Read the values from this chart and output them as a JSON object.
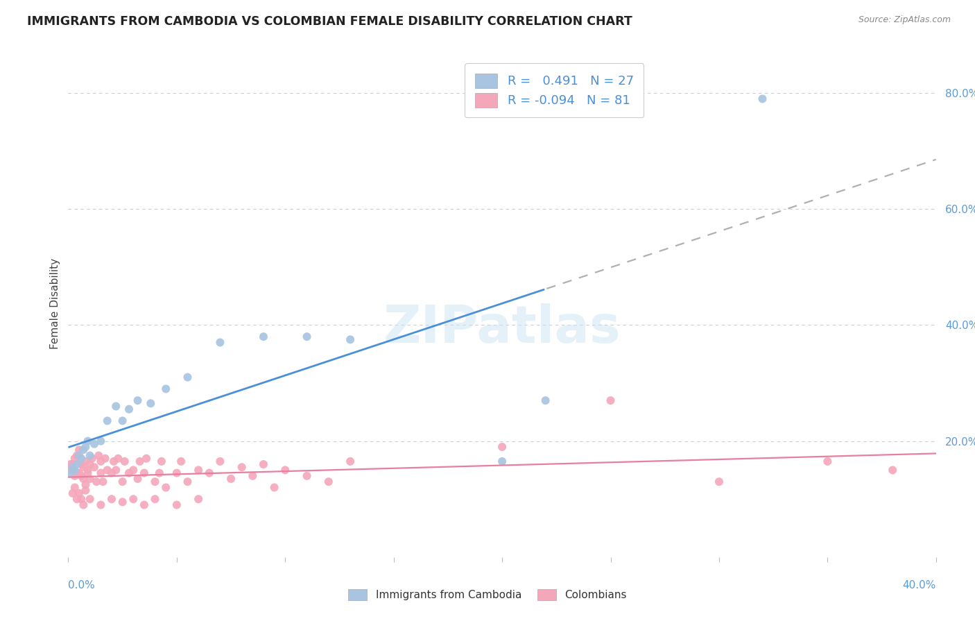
{
  "title": "IMMIGRANTS FROM CAMBODIA VS COLOMBIAN FEMALE DISABILITY CORRELATION CHART",
  "source": "Source: ZipAtlas.com",
  "ylabel": "Female Disability",
  "legend_label1": "Immigrants from Cambodia",
  "legend_label2": "Colombians",
  "r1": 0.491,
  "n1": 27,
  "r2": -0.094,
  "n2": 81,
  "watermark": "ZIPatlas",
  "blue_color": "#a8c4e0",
  "pink_color": "#f4a7b9",
  "blue_line_color": "#4a90d9",
  "pink_line_color": "#e87fa0",
  "gray_dash_color": "#b0b0b0",
  "cambodia_x": [
    0.001,
    0.002,
    0.003,
    0.004,
    0.005,
    0.006,
    0.007,
    0.008,
    0.009,
    0.01,
    0.012,
    0.015,
    0.018,
    0.022,
    0.025,
    0.028,
    0.032,
    0.038,
    0.045,
    0.055,
    0.07,
    0.09,
    0.11,
    0.13,
    0.2,
    0.22,
    0.32
  ],
  "cambodia_y": [
    0.145,
    0.155,
    0.15,
    0.16,
    0.175,
    0.17,
    0.185,
    0.19,
    0.2,
    0.175,
    0.195,
    0.2,
    0.235,
    0.26,
    0.235,
    0.255,
    0.27,
    0.265,
    0.29,
    0.31,
    0.37,
    0.38,
    0.38,
    0.375,
    0.165,
    0.27,
    0.79
  ],
  "colombian_x": [
    0.001,
    0.001,
    0.002,
    0.002,
    0.003,
    0.003,
    0.004,
    0.004,
    0.005,
    0.005,
    0.006,
    0.006,
    0.007,
    0.007,
    0.008,
    0.008,
    0.009,
    0.009,
    0.01,
    0.01,
    0.011,
    0.012,
    0.013,
    0.014,
    0.015,
    0.015,
    0.016,
    0.017,
    0.018,
    0.02,
    0.021,
    0.022,
    0.023,
    0.025,
    0.026,
    0.028,
    0.03,
    0.032,
    0.033,
    0.035,
    0.036,
    0.04,
    0.042,
    0.043,
    0.045,
    0.05,
    0.052,
    0.055,
    0.06,
    0.065,
    0.07,
    0.075,
    0.08,
    0.085,
    0.09,
    0.095,
    0.1,
    0.11,
    0.12,
    0.13,
    0.002,
    0.003,
    0.004,
    0.005,
    0.006,
    0.007,
    0.008,
    0.01,
    0.015,
    0.02,
    0.025,
    0.03,
    0.035,
    0.04,
    0.05,
    0.06,
    0.2,
    0.25,
    0.3,
    0.35,
    0.38
  ],
  "colombian_y": [
    0.15,
    0.16,
    0.15,
    0.16,
    0.14,
    0.17,
    0.145,
    0.175,
    0.145,
    0.185,
    0.14,
    0.16,
    0.135,
    0.155,
    0.125,
    0.165,
    0.145,
    0.15,
    0.135,
    0.16,
    0.17,
    0.155,
    0.13,
    0.175,
    0.145,
    0.165,
    0.13,
    0.17,
    0.15,
    0.145,
    0.165,
    0.15,
    0.17,
    0.13,
    0.165,
    0.145,
    0.15,
    0.135,
    0.165,
    0.145,
    0.17,
    0.13,
    0.145,
    0.165,
    0.12,
    0.145,
    0.165,
    0.13,
    0.15,
    0.145,
    0.165,
    0.135,
    0.155,
    0.14,
    0.16,
    0.12,
    0.15,
    0.14,
    0.13,
    0.165,
    0.11,
    0.12,
    0.1,
    0.11,
    0.1,
    0.09,
    0.115,
    0.1,
    0.09,
    0.1,
    0.095,
    0.1,
    0.09,
    0.1,
    0.09,
    0.1,
    0.19,
    0.27,
    0.13,
    0.165,
    0.15
  ],
  "xlim": [
    0.0,
    0.4
  ],
  "ylim": [
    0.0,
    0.875
  ],
  "yticks": [
    0.0,
    0.2,
    0.4,
    0.6,
    0.8
  ],
  "ytick_labels": [
    "",
    "20.0%",
    "40.0%",
    "60.0%",
    "80.0%"
  ],
  "blue_line_solid_end": 0.22,
  "background_color": "#ffffff",
  "grid_color": "#cccccc"
}
